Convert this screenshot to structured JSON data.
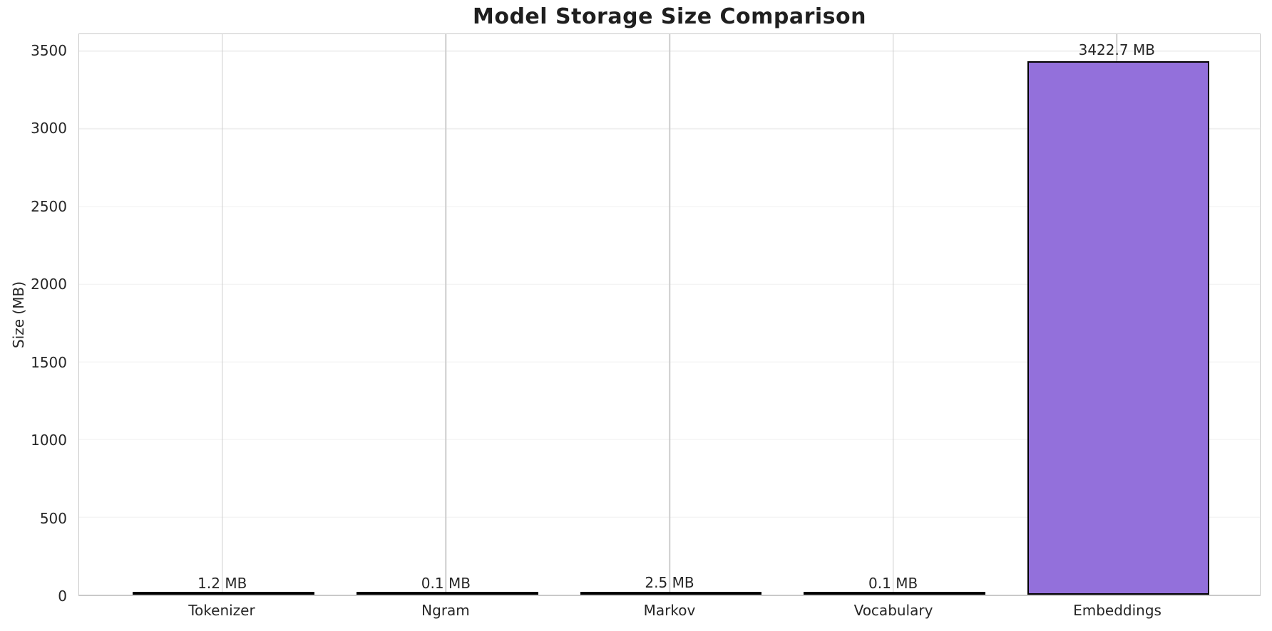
{
  "figure": {
    "background": "#ffffff",
    "text_color": "#262626"
  },
  "chart_data": {
    "type": "bar",
    "title": "Model Storage Size Comparison",
    "xlabel": "",
    "ylabel": "Size (MB)",
    "categories": [
      "Tokenizer",
      "Ngram",
      "Markov",
      "Vocabulary",
      "Embeddings"
    ],
    "values": [
      1.2,
      0.1,
      2.5,
      0.1,
      3422.7
    ],
    "value_labels": [
      "1.2 MB",
      "0.1 MB",
      "2.5 MB",
      "0.1 MB",
      "3422.7 MB"
    ],
    "yticks": [
      0,
      500,
      1000,
      1500,
      2000,
      2500,
      3000,
      3500
    ],
    "ylim": [
      0,
      3610
    ],
    "xlim_units": [
      -0.64,
      4.64
    ],
    "bar_width_units": 0.8,
    "grid": "on",
    "legend": "none",
    "bar_color": "#9370DB",
    "bar_edge_color": "#000000"
  }
}
